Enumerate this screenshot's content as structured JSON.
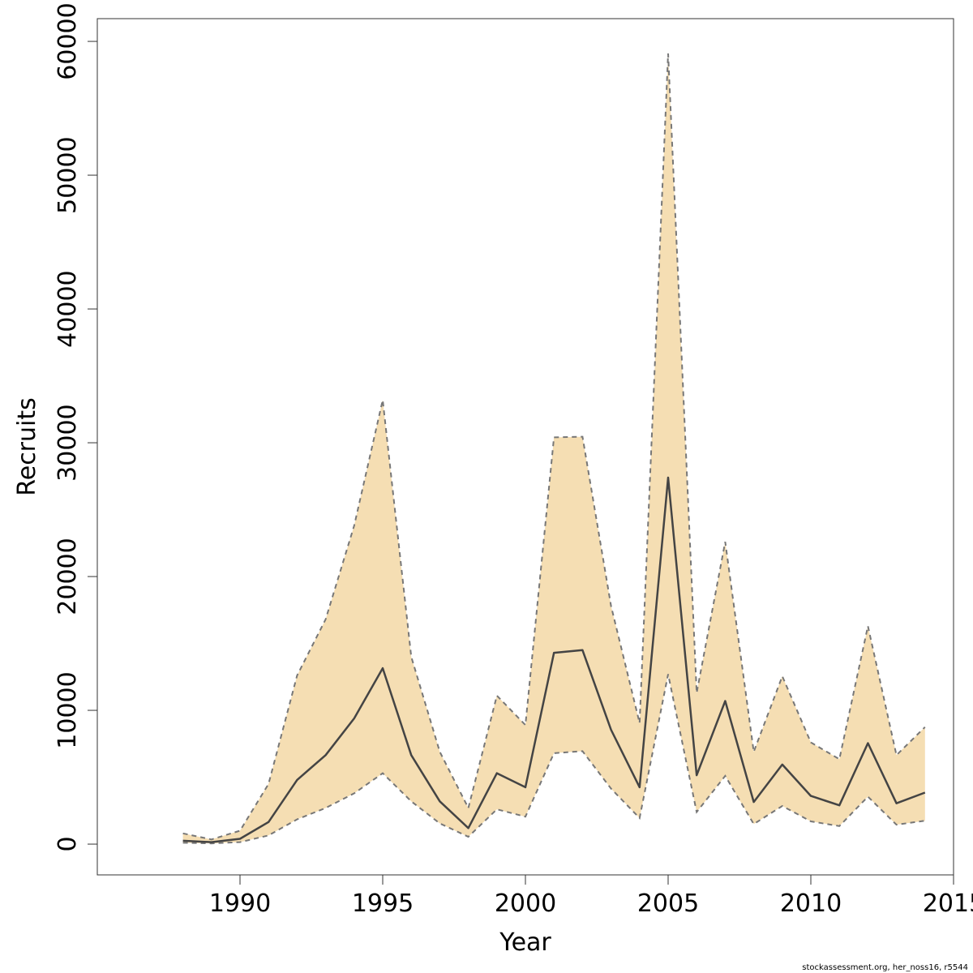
{
  "chart_data": {
    "type": "area",
    "xlabel": "Year",
    "ylabel": "Recruits",
    "xlim": [
      1985,
      2015
    ],
    "ylim": [
      -2300,
      61700
    ],
    "x_ticks": [
      1990,
      1995,
      2000,
      2005,
      2010,
      2015
    ],
    "y_ticks": [
      0,
      10000,
      20000,
      30000,
      40000,
      50000,
      60000
    ],
    "grid": false,
    "colors": {
      "band": "#f5deb3",
      "line": "#444444",
      "bound": "#777777"
    },
    "x": [
      1988,
      1989,
      1990,
      1991,
      1992,
      1993,
      1994,
      1995,
      1996,
      1997,
      1998,
      1999,
      2000,
      2001,
      2002,
      2003,
      2004,
      2005,
      2006,
      2007,
      2008,
      2009,
      2010,
      2011,
      2012,
      2013,
      2014
    ],
    "series": [
      {
        "role": "estimate",
        "values": [
          250,
          150,
          400,
          1650,
          4800,
          6650,
          9400,
          13150,
          6650,
          3200,
          1200,
          5300,
          4250,
          14300,
          14500,
          8550,
          4250,
          27400,
          5150,
          10700,
          3150,
          5950,
          3600,
          2900,
          7550,
          3050,
          3850
        ]
      },
      {
        "role": "upper",
        "values": [
          800,
          350,
          1000,
          4500,
          12600,
          16800,
          23800,
          33200,
          14000,
          6900,
          2700,
          11100,
          8900,
          30400,
          30450,
          17800,
          9050,
          59100,
          11300,
          22600,
          6900,
          12550,
          7600,
          6350,
          16300,
          6650,
          8750
        ]
      },
      {
        "role": "lower",
        "values": [
          100,
          50,
          150,
          650,
          1850,
          2700,
          3800,
          5300,
          3200,
          1550,
          550,
          2600,
          2050,
          6800,
          6950,
          4150,
          1950,
          12700,
          2400,
          5100,
          1500,
          2850,
          1700,
          1350,
          3550,
          1450,
          1750
        ]
      }
    ]
  },
  "footnote": "stockassessment.org, her_noss16, r5544"
}
